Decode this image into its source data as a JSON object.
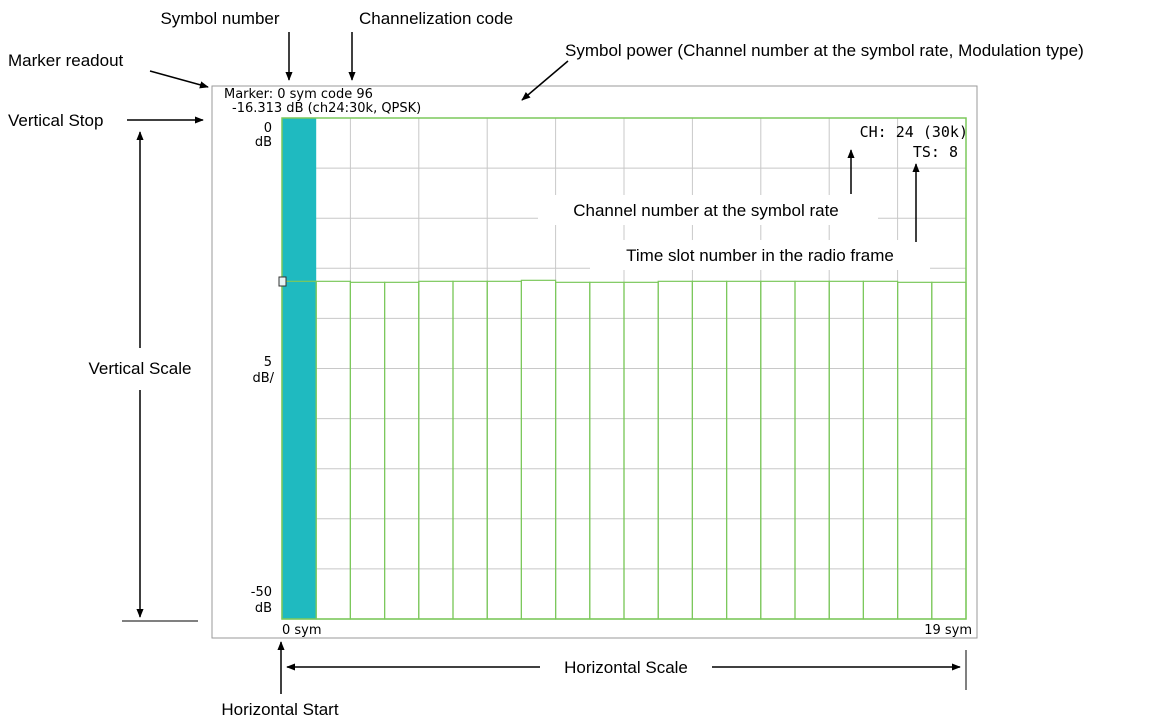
{
  "callouts": {
    "symbol_number": "Symbol number",
    "channelization_code": "Channelization code",
    "marker_readout": "Marker readout",
    "symbol_power": "Symbol power (Channel number at the symbol rate, Modulation type)",
    "vertical_stop": "Vertical Stop",
    "vertical_scale": "Vertical Scale",
    "channel_number": "Channel number at the symbol rate",
    "time_slot": "Time slot number in the radio frame",
    "horizontal_scale": "Horizontal Scale",
    "horizontal_start": "Horizontal Start"
  },
  "screen": {
    "marker_line1": "Marker: 0 sym  code 96",
    "marker_line2": "-16.313 dB   (ch24:30k, QPSK)",
    "ch_label": "CH: 24 (30k)",
    "ts_label": "TS:  8",
    "y_top_value": "0",
    "y_top_unit": "dB",
    "y_mid_value": "5",
    "y_mid_unit": "dB/",
    "y_bottom_value": "-50",
    "y_bottom_unit": "dB",
    "x_start": "0 sym",
    "x_end": "19 sym"
  },
  "colors": {
    "trace": "#7cc85c",
    "grid": "#c8c8c8",
    "marker_fill": "#1fbac0"
  },
  "chart_data": {
    "type": "bar",
    "x_unit": "sym",
    "xlim": [
      0,
      19
    ],
    "ylim": [
      -50,
      0
    ],
    "y_scale_per_div": 5,
    "marked_symbol": 0,
    "values": [
      -16.3,
      -16.3,
      -16.4,
      -16.4,
      -16.3,
      -16.3,
      -16.3,
      -16.2,
      -16.4,
      -16.4,
      -16.4,
      -16.3,
      -16.3,
      -16.3,
      -16.3,
      -16.3,
      -16.3,
      -16.3,
      -16.4,
      -16.4
    ]
  }
}
